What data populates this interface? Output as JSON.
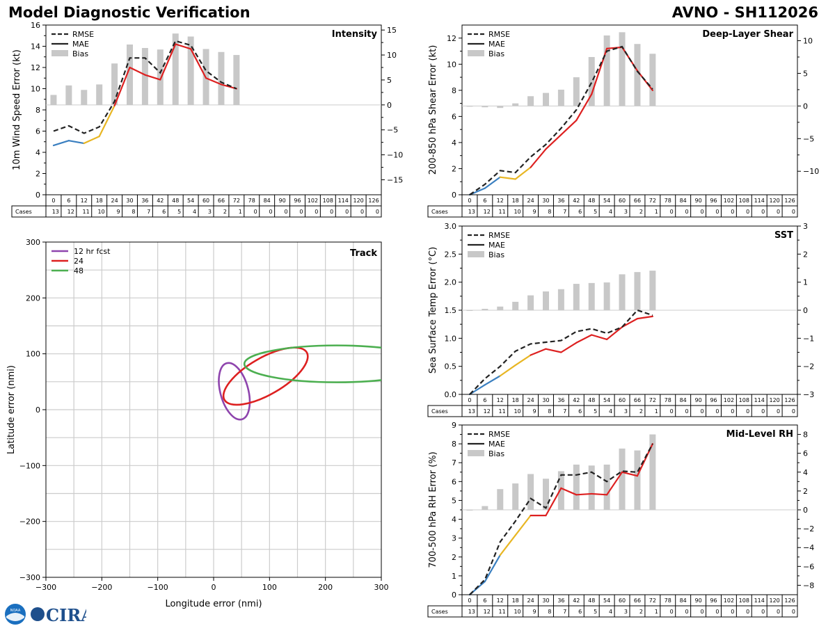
{
  "header": {
    "title": "Model Diagnostic Verification",
    "subtitle": "AVNO - SH112026"
  },
  "logo": {
    "noaa": "NOAA",
    "cira": "CIRA"
  },
  "colors": {
    "rmse": "#222222",
    "early": "#3a7fc0",
    "mid": "#e8b623",
    "late": "#dd2020",
    "bias": "#c8c8c8",
    "grid": "#cccccc"
  },
  "forecast_hours": [
    0,
    6,
    12,
    18,
    24,
    30,
    36,
    42,
    48,
    54,
    60,
    66,
    72,
    78,
    84,
    90,
    96,
    102,
    108,
    114,
    120,
    126
  ],
  "cases_label": "Cases",
  "cases": [
    13,
    12,
    11,
    10,
    9,
    8,
    7,
    6,
    5,
    4,
    3,
    2,
    1,
    0,
    0,
    0,
    0,
    0,
    0,
    0,
    0,
    0
  ],
  "legend": {
    "rmse": "RMSE",
    "mae": "MAE",
    "bias": "Bias"
  },
  "chart_data": [
    {
      "id": "intensity",
      "type": "line",
      "title": "Intensity",
      "ylabel": "10m Wind Speed Error (kt)",
      "ylim": [
        0,
        16
      ],
      "yticks": [
        0,
        2,
        4,
        6,
        8,
        10,
        12,
        14,
        16
      ],
      "y2lim": [
        -18,
        16
      ],
      "y2ticks": [
        -15,
        -10,
        -5,
        0,
        5,
        10,
        15
      ],
      "rmse": [
        6.0,
        6.5,
        5.8,
        6.4,
        8.8,
        12.9,
        12.9,
        11.5,
        14.5,
        14.1,
        11.7,
        10.6,
        10.0
      ],
      "mae": [
        4.65,
        5.1,
        4.85,
        5.5,
        8.4,
        12.0,
        11.3,
        10.85,
        14.2,
        13.75,
        11.0,
        10.4,
        10.0
      ],
      "bias": [
        2.0,
        3.9,
        3.0,
        4.1,
        8.3,
        12.1,
        11.4,
        11.1,
        14.3,
        13.7,
        11.2,
        10.6,
        10.0
      ]
    },
    {
      "id": "shear",
      "type": "line",
      "title": "Deep-Layer Shear",
      "ylabel": "200-850 hPa Shear Error (kt)",
      "ylim": [
        0,
        13
      ],
      "yticks": [
        0,
        2,
        4,
        6,
        8,
        10,
        12
      ],
      "y2lim": [
        -13.6,
        12.4
      ],
      "y2ticks": [
        -10,
        -5,
        0,
        5,
        10
      ],
      "rmse": [
        0.0,
        0.8,
        1.85,
        1.7,
        2.9,
        3.85,
        5.1,
        6.5,
        8.6,
        11.0,
        11.35,
        9.45,
        8.1
      ],
      "mae": [
        0.0,
        0.5,
        1.35,
        1.2,
        2.1,
        3.5,
        4.6,
        5.7,
        7.7,
        11.2,
        11.3,
        9.5,
        8.0
      ],
      "bias": [
        0.0,
        -0.2,
        -0.3,
        0.4,
        1.5,
        2.0,
        2.5,
        4.4,
        7.5,
        10.8,
        11.3,
        9.5,
        8.0
      ]
    },
    {
      "id": "sst",
      "type": "line",
      "title": "SST",
      "ylabel": "Sea Surface Temp Error (°C)",
      "ylim": [
        0,
        3.0
      ],
      "yticks": [
        0.0,
        0.5,
        1.0,
        1.5,
        2.0,
        2.5,
        3.0
      ],
      "y2lim": [
        -3,
        3
      ],
      "y2ticks": [
        -3,
        -2,
        -1,
        0,
        1,
        2,
        3
      ],
      "rmse": [
        0.0,
        0.28,
        0.5,
        0.77,
        0.9,
        0.93,
        0.96,
        1.12,
        1.17,
        1.09,
        1.2,
        1.5,
        1.41
      ],
      "mae": [
        0.0,
        0.17,
        0.33,
        0.52,
        0.7,
        0.81,
        0.75,
        0.92,
        1.06,
        0.98,
        1.2,
        1.35,
        1.39
      ],
      "bias": [
        0.0,
        0.05,
        0.13,
        0.3,
        0.53,
        0.67,
        0.75,
        0.94,
        0.97,
        0.99,
        1.28,
        1.36,
        1.41
      ]
    },
    {
      "id": "rh",
      "type": "line",
      "title": "Mid-Level RH",
      "ylabel": "700-500 hPa RH Error (%)",
      "ylim": [
        0,
        9
      ],
      "yticks": [
        0,
        1,
        2,
        3,
        4,
        5,
        6,
        7,
        8,
        9
      ],
      "y2lim": [
        -9,
        9
      ],
      "y2ticks": [
        -8,
        -6,
        -4,
        -2,
        0,
        2,
        4,
        6,
        8
      ],
      "rmse": [
        0.0,
        0.8,
        2.8,
        3.9,
        5.1,
        4.6,
        6.35,
        6.35,
        6.5,
        6.0,
        6.55,
        6.5,
        8.0
      ],
      "mae": [
        0.0,
        0.7,
        2.1,
        3.15,
        4.2,
        4.2,
        5.65,
        5.3,
        5.35,
        5.3,
        6.5,
        6.3,
        8.0
      ],
      "bias": [
        0.0,
        0.4,
        2.2,
        2.8,
        3.8,
        3.3,
        4.1,
        4.8,
        4.7,
        4.8,
        6.5,
        6.3,
        8.0
      ]
    },
    {
      "id": "track",
      "type": "scatter",
      "title": "Track",
      "xlabel": "Longitude error (nmi)",
      "ylabel": "Latitude error (nmi)",
      "xlim": [
        -300,
        300
      ],
      "ylim": [
        -300,
        300
      ],
      "ticks": [
        -300,
        -200,
        -100,
        0,
        100,
        200,
        300
      ],
      "ellipses": [
        {
          "name": "12 hr fcst",
          "color": "#8e44ad",
          "cx": 37,
          "cy": 33,
          "rx": 25,
          "ry": 52,
          "angle": 15
        },
        {
          "name": "24",
          "color": "#dd2020",
          "cx": 93,
          "cy": 60,
          "rx": 85,
          "ry": 33,
          "angle": 30
        },
        {
          "name": "48",
          "color": "#4caf50",
          "cx": 220,
          "cy": 82,
          "rx": 165,
          "ry": 33,
          "angle": 0
        }
      ]
    }
  ]
}
